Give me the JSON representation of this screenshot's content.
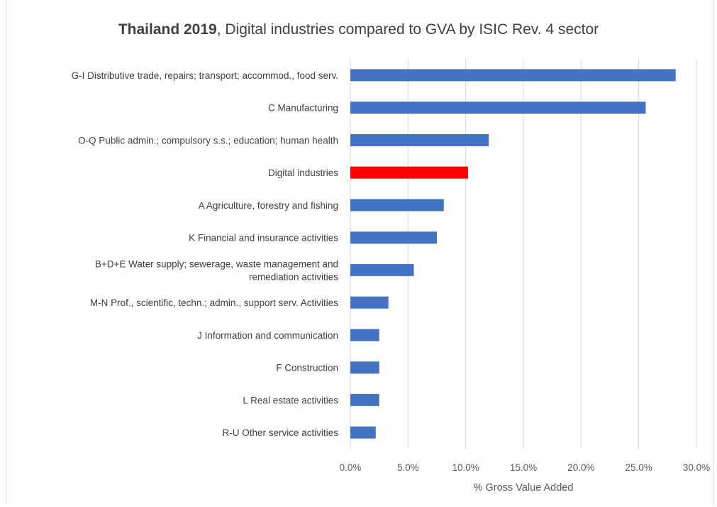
{
  "chart_data": {
    "type": "bar",
    "orientation": "horizontal",
    "title_bold": "Thailand 2019",
    "title_rest": ", Digital industries compared to GVA by ISIC Rev. 4 sector",
    "xlabel": "% Gross Value Added",
    "ylabel": "",
    "xlim": [
      0,
      30
    ],
    "tick_labels": [
      "0.0%",
      "5.0%",
      "10.0%",
      "15.0%",
      "20.0%",
      "25.0%",
      "30.0%"
    ],
    "grid": "vertical",
    "categories": [
      [
        "G-I Distributive trade, repairs; transport; accommod., food serv."
      ],
      [
        "C Manufacturing"
      ],
      [
        "O-Q Public admin.; compulsory s.s.; education; human health"
      ],
      [
        "Digital industries"
      ],
      [
        "A Agriculture, forestry and fishing"
      ],
      [
        "K Financial and insurance activities"
      ],
      [
        "B+D+E Water supply; sewerage, waste management and",
        "remediation activities"
      ],
      [
        "M-N Prof., scientific, techn.; admin., support serv. Activities"
      ],
      [
        "J Information and communication"
      ],
      [
        "F Construction"
      ],
      [
        "L Real estate activities"
      ],
      [
        "R-U Other service activities"
      ]
    ],
    "values": [
      28.2,
      25.6,
      12.0,
      10.2,
      8.1,
      7.5,
      5.5,
      3.3,
      2.5,
      2.5,
      2.5,
      2.2
    ],
    "colors": [
      "#4472c4",
      "#4472c4",
      "#4472c4",
      "#ff0000",
      "#4472c4",
      "#4472c4",
      "#4472c4",
      "#4472c4",
      "#4472c4",
      "#4472c4",
      "#4472c4",
      "#4472c4"
    ],
    "gridline_color": "#d9d9d9"
  }
}
